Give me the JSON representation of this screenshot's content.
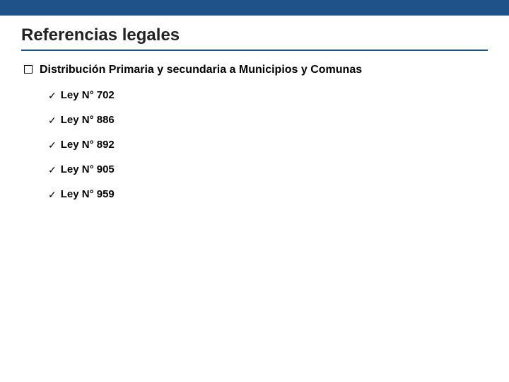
{
  "colors": {
    "band": "#1e5288",
    "underline": "#1e5288"
  },
  "title": "Referencias legales",
  "group": {
    "heading": "Distribución Primaria y secundaria a Municipios y Comunas",
    "bullet_type": "square",
    "items": [
      {
        "label": "Ley N° 702",
        "marker": "check"
      },
      {
        "label": "Ley N° 886",
        "marker": "check"
      },
      {
        "label": "Ley N° 892",
        "marker": "check"
      },
      {
        "label": "Ley N° 905",
        "marker": "check"
      },
      {
        "label": "Ley N° 959",
        "marker": "check"
      }
    ]
  }
}
